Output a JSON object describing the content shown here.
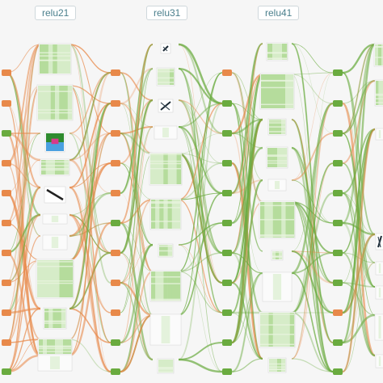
{
  "layers": [
    {
      "id": "relu21",
      "label": "relu21"
    },
    {
      "id": "relu31",
      "label": "relu31"
    },
    {
      "id": "relu41",
      "label": "relu41"
    }
  ],
  "colors": {
    "background": "#f6f6f6",
    "positive": "#6aab3f",
    "negative": "#e8894a",
    "feature_light": "#d6ecc8",
    "feature_mid": "#b5dc9c"
  }
}
